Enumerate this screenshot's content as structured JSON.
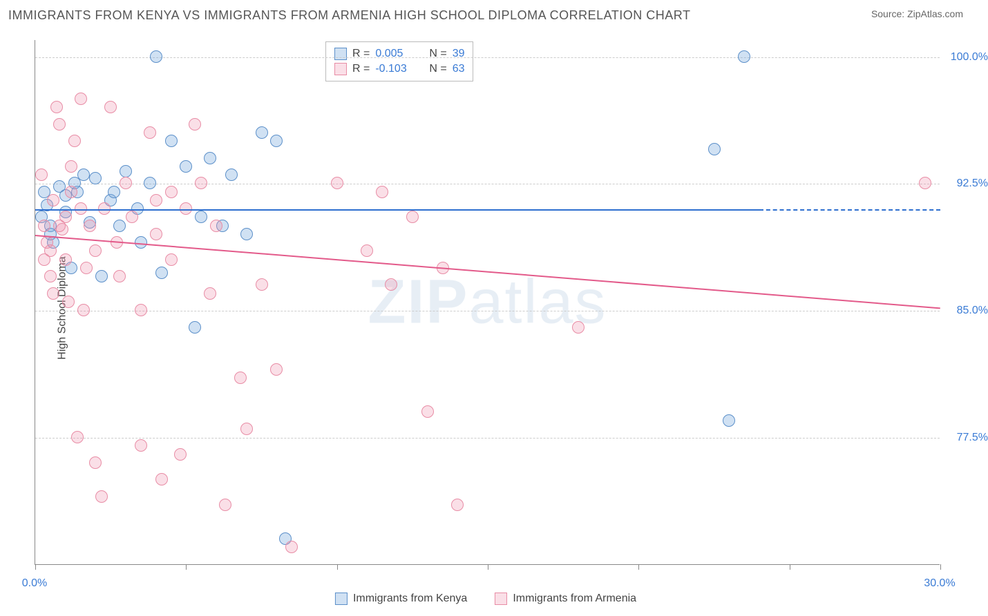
{
  "title": "IMMIGRANTS FROM KENYA VS IMMIGRANTS FROM ARMENIA HIGH SCHOOL DIPLOMA CORRELATION CHART",
  "source": "Source: ZipAtlas.com",
  "y_axis_label": "High School Diploma",
  "watermark_bold": "ZIP",
  "watermark_rest": "atlas",
  "colors": {
    "series1_fill": "rgba(120,170,220,0.35)",
    "series1_stroke": "#5b8fc9",
    "series1_trend": "#2e6fd0",
    "series2_fill": "rgba(240,150,175,0.30)",
    "series2_stroke": "#e88ca5",
    "series2_trend": "#e35a8a",
    "tick_label": "#3a7bd5",
    "legend_value": "#3a7bd5",
    "grid": "#cccccc",
    "axis": "#888888"
  },
  "chart": {
    "type": "scatter",
    "xlim": [
      0,
      30
    ],
    "ylim": [
      70,
      101
    ],
    "y_ticks": [
      77.5,
      85.0,
      92.5,
      100.0
    ],
    "y_tick_labels": [
      "77.5%",
      "85.0%",
      "92.5%",
      "100.0%"
    ],
    "x_ticks": [
      0,
      5,
      10,
      15,
      20,
      25,
      30
    ],
    "x_tick_labels_visible": {
      "0": "0.0%",
      "30": "30.0%"
    },
    "point_radius": 9,
    "series": [
      {
        "name": "Immigrants from Kenya",
        "legend_label": "Immigrants from Kenya",
        "R": "0.005",
        "N": "39",
        "trend": {
          "x0": 0,
          "y0": 91.0,
          "x1": 24,
          "y1": 91.0,
          "dash_extend_x": 30
        },
        "points": [
          [
            0.2,
            90.5
          ],
          [
            0.3,
            92.0
          ],
          [
            0.4,
            91.2
          ],
          [
            0.5,
            90.0
          ],
          [
            0.6,
            89.0
          ],
          [
            0.8,
            92.3
          ],
          [
            1.0,
            91.8
          ],
          [
            1.2,
            87.5
          ],
          [
            1.4,
            92.0
          ],
          [
            1.6,
            93.0
          ],
          [
            1.8,
            90.2
          ],
          [
            2.0,
            92.8
          ],
          [
            2.2,
            87.0
          ],
          [
            2.5,
            91.5
          ],
          [
            2.8,
            90.0
          ],
          [
            3.0,
            93.2
          ],
          [
            3.4,
            91.0
          ],
          [
            3.8,
            92.5
          ],
          [
            4.0,
            100.0
          ],
          [
            4.2,
            87.2
          ],
          [
            4.5,
            95.0
          ],
          [
            5.0,
            93.5
          ],
          [
            5.3,
            84.0
          ],
          [
            5.5,
            90.5
          ],
          [
            5.8,
            94.0
          ],
          [
            6.2,
            90.0
          ],
          [
            6.5,
            93.0
          ],
          [
            7.0,
            89.5
          ],
          [
            7.5,
            95.5
          ],
          [
            8.0,
            95.0
          ],
          [
            8.3,
            71.5
          ],
          [
            0.5,
            89.5
          ],
          [
            1.0,
            90.8
          ],
          [
            1.3,
            92.5
          ],
          [
            2.6,
            92.0
          ],
          [
            3.5,
            89.0
          ],
          [
            22.5,
            94.5
          ],
          [
            23.5,
            100.0
          ],
          [
            23.0,
            78.5
          ]
        ]
      },
      {
        "name": "Immigrants from Armenia",
        "legend_label": "Immigrants from Armenia",
        "R": "-0.103",
        "N": "63",
        "trend": {
          "x0": 0,
          "y0": 89.5,
          "x1": 30,
          "y1": 85.2
        },
        "points": [
          [
            0.2,
            93.0
          ],
          [
            0.3,
            90.0
          ],
          [
            0.4,
            89.0
          ],
          [
            0.5,
            88.5
          ],
          [
            0.6,
            91.5
          ],
          [
            0.7,
            97.0
          ],
          [
            0.8,
            96.0
          ],
          [
            0.9,
            89.8
          ],
          [
            1.0,
            90.5
          ],
          [
            1.1,
            85.5
          ],
          [
            1.2,
            92.0
          ],
          [
            1.3,
            95.0
          ],
          [
            1.4,
            77.5
          ],
          [
            1.5,
            97.5
          ],
          [
            1.6,
            85.0
          ],
          [
            1.8,
            90.0
          ],
          [
            2.0,
            76.0
          ],
          [
            2.2,
            74.0
          ],
          [
            2.5,
            97.0
          ],
          [
            2.7,
            89.0
          ],
          [
            3.0,
            92.5
          ],
          [
            3.2,
            90.5
          ],
          [
            3.5,
            77.0
          ],
          [
            3.8,
            95.5
          ],
          [
            4.0,
            89.5
          ],
          [
            4.2,
            75.0
          ],
          [
            4.5,
            92.0
          ],
          [
            4.8,
            76.5
          ],
          [
            5.0,
            91.0
          ],
          [
            5.3,
            96.0
          ],
          [
            5.5,
            92.5
          ],
          [
            5.8,
            86.0
          ],
          [
            6.0,
            90.0
          ],
          [
            6.3,
            73.5
          ],
          [
            6.8,
            81.0
          ],
          [
            7.0,
            78.0
          ],
          [
            7.5,
            86.5
          ],
          [
            8.0,
            81.5
          ],
          [
            8.5,
            71.0
          ],
          [
            10.0,
            92.5
          ],
          [
            11.0,
            88.5
          ],
          [
            11.5,
            92.0
          ],
          [
            11.8,
            86.5
          ],
          [
            12.5,
            90.5
          ],
          [
            13.0,
            79.0
          ],
          [
            13.5,
            87.5
          ],
          [
            14.0,
            73.5
          ],
          [
            18.0,
            84.0
          ],
          [
            29.5,
            92.5
          ],
          [
            0.3,
            88.0
          ],
          [
            0.5,
            87.0
          ],
          [
            0.6,
            86.0
          ],
          [
            0.8,
            90.0
          ],
          [
            1.0,
            88.0
          ],
          [
            1.2,
            93.5
          ],
          [
            1.5,
            91.0
          ],
          [
            1.7,
            87.5
          ],
          [
            2.0,
            88.5
          ],
          [
            2.3,
            91.0
          ],
          [
            2.8,
            87.0
          ],
          [
            3.5,
            85.0
          ],
          [
            4.0,
            91.5
          ],
          [
            4.5,
            88.0
          ]
        ]
      }
    ]
  },
  "stats_legend": {
    "rows": [
      {
        "swatch": 0,
        "r_label": "R =",
        "r_val": "0.005",
        "n_label": "N =",
        "n_val": "39"
      },
      {
        "swatch": 1,
        "r_label": "R =",
        "r_val": "-0.103",
        "n_label": "N =",
        "n_val": "63"
      }
    ]
  }
}
